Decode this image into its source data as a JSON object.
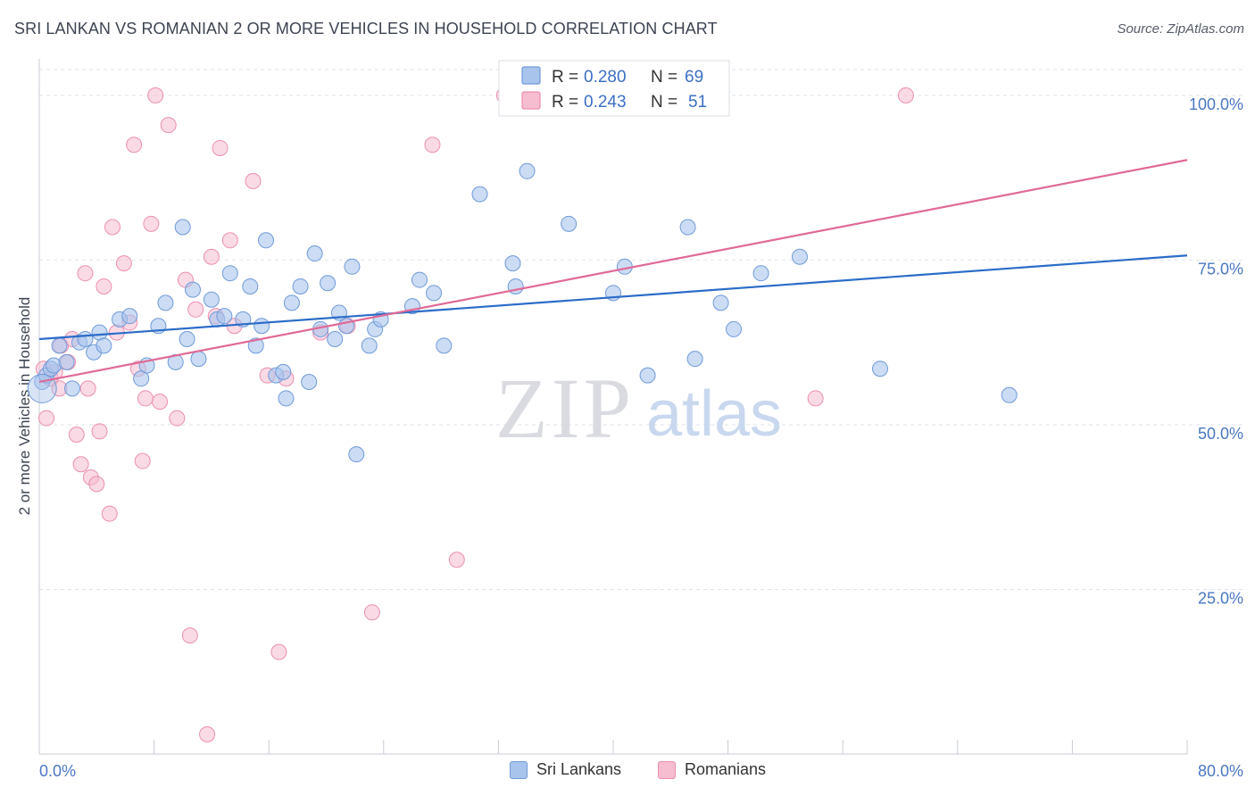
{
  "title": "SRI LANKAN VS ROMANIAN 2 OR MORE VEHICLES IN HOUSEHOLD CORRELATION CHART",
  "source": "Source: ZipAtlas.com",
  "watermark": {
    "zip": "ZIP",
    "atlas": "atlas"
  },
  "colors": {
    "blue_fill": "#a9c4ec",
    "blue_stroke": "#6f9ad8",
    "blue_line": "#2b6cc8",
    "pink_fill": "#f6bcd0",
    "pink_stroke": "#ec8fb0",
    "pink_line": "#e06a97",
    "tick_label": "#4a78c2",
    "grid": "#dde2ea"
  },
  "legend_box": {
    "rows": [
      {
        "r_label": "R = ",
        "r_value": "0.280",
        "n_label": "N = ",
        "n_value": "69"
      },
      {
        "r_label": "R = ",
        "r_value": "0.243",
        "n_label": "N = ",
        "n_value": "51"
      }
    ]
  },
  "bottom_legend": {
    "blue": "Sri Lankans",
    "pink": "Romanians"
  },
  "chart_data": {
    "type": "scatter",
    "title": "SRI LANKAN VS ROMANIAN 2 OR MORE VEHICLES IN HOUSEHOLD CORRELATION CHART",
    "xlabel": "",
    "ylabel": "2 or more Vehicles in Household",
    "xlim": [
      0,
      80
    ],
    "ylim": [
      0,
      105
    ],
    "x_tick_labels": [
      "0.0%",
      "80.0%"
    ],
    "y_ticks": [
      25,
      50,
      75,
      100
    ],
    "y_tick_labels": [
      "25.0%",
      "50.0%",
      "75.0%",
      "100.0%"
    ],
    "grid": true,
    "legend_position": "top-center",
    "series": [
      {
        "name": "Sri Lankans",
        "color": "#a9c4ec",
        "r": 0.28,
        "n": 69,
        "trend": [
          [
            0,
            63.0
          ],
          [
            80,
            75.7
          ]
        ],
        "points": [
          [
            0.2,
            56.5
          ],
          [
            0.5,
            57.5
          ],
          [
            0.8,
            58.5
          ],
          [
            1.0,
            59.0
          ],
          [
            1.4,
            62.0
          ],
          [
            1.9,
            59.5
          ],
          [
            2.3,
            55.5
          ],
          [
            2.8,
            62.5
          ],
          [
            3.2,
            63.0
          ],
          [
            3.8,
            61.0
          ],
          [
            4.2,
            64.0
          ],
          [
            4.5,
            62.0
          ],
          [
            5.6,
            66.0
          ],
          [
            6.3,
            66.5
          ],
          [
            7.1,
            57.0
          ],
          [
            7.5,
            59.0
          ],
          [
            8.3,
            65.0
          ],
          [
            8.8,
            68.5
          ],
          [
            9.5,
            59.5
          ],
          [
            10.3,
            63.0
          ],
          [
            10.7,
            70.5
          ],
          [
            11.1,
            60.0
          ],
          [
            12.0,
            69.0
          ],
          [
            12.4,
            66.0
          ],
          [
            12.9,
            66.5
          ],
          [
            13.3,
            73.0
          ],
          [
            14.2,
            66.0
          ],
          [
            14.7,
            71.0
          ],
          [
            15.1,
            62.0
          ],
          [
            15.5,
            65.0
          ],
          [
            15.8,
            78.0
          ],
          [
            16.5,
            57.5
          ],
          [
            17.0,
            58.0
          ],
          [
            17.2,
            54.0
          ],
          [
            17.6,
            68.5
          ],
          [
            18.2,
            71.0
          ],
          [
            18.8,
            56.5
          ],
          [
            19.2,
            76.0
          ],
          [
            19.6,
            64.5
          ],
          [
            20.1,
            71.5
          ],
          [
            20.6,
            63.0
          ],
          [
            20.9,
            67.0
          ],
          [
            21.4,
            65.0
          ],
          [
            21.8,
            74.0
          ],
          [
            22.1,
            45.5
          ],
          [
            23.0,
            62.0
          ],
          [
            23.4,
            64.5
          ],
          [
            23.8,
            66.0
          ],
          [
            26.0,
            68.0
          ],
          [
            26.5,
            72.0
          ],
          [
            27.5,
            70.0
          ],
          [
            28.2,
            62.0
          ],
          [
            30.7,
            85.0
          ],
          [
            33.0,
            74.5
          ],
          [
            33.2,
            71.0
          ],
          [
            34.0,
            88.5
          ],
          [
            36.9,
            80.5
          ],
          [
            40.0,
            70.0
          ],
          [
            40.8,
            74.0
          ],
          [
            42.4,
            57.5
          ],
          [
            45.2,
            80.0
          ],
          [
            45.7,
            60.0
          ],
          [
            47.5,
            68.5
          ],
          [
            48.4,
            64.5
          ],
          [
            50.3,
            73.0
          ],
          [
            53.0,
            75.5
          ],
          [
            58.6,
            58.5
          ],
          [
            67.6,
            54.5
          ],
          [
            10.0,
            80.0
          ]
        ]
      },
      {
        "name": "Romanians",
        "color": "#f6bcd0",
        "r": 0.243,
        "n": 51,
        "trend": [
          [
            0,
            56.5
          ],
          [
            80,
            90.2
          ]
        ],
        "points": [
          [
            0.3,
            58.5
          ],
          [
            0.5,
            51.0
          ],
          [
            0.8,
            57.0
          ],
          [
            1.1,
            58.0
          ],
          [
            1.4,
            55.5
          ],
          [
            1.5,
            62.0
          ],
          [
            2.0,
            59.5
          ],
          [
            2.3,
            63.0
          ],
          [
            2.6,
            48.5
          ],
          [
            2.9,
            44.0
          ],
          [
            3.2,
            73.0
          ],
          [
            3.4,
            55.5
          ],
          [
            3.6,
            42.0
          ],
          [
            4.0,
            41.0
          ],
          [
            4.2,
            49.0
          ],
          [
            4.5,
            71.0
          ],
          [
            4.9,
            36.5
          ],
          [
            5.1,
            80.0
          ],
          [
            5.4,
            64.0
          ],
          [
            5.9,
            74.5
          ],
          [
            6.3,
            65.5
          ],
          [
            6.6,
            92.5
          ],
          [
            6.9,
            58.5
          ],
          [
            7.2,
            44.5
          ],
          [
            7.4,
            54.0
          ],
          [
            7.8,
            80.5
          ],
          [
            8.1,
            100.0
          ],
          [
            8.4,
            53.5
          ],
          [
            9.0,
            95.5
          ],
          [
            9.6,
            51.0
          ],
          [
            10.2,
            72.0
          ],
          [
            10.5,
            18.0
          ],
          [
            10.9,
            67.5
          ],
          [
            11.7,
            3.0
          ],
          [
            12.0,
            75.5
          ],
          [
            12.3,
            66.5
          ],
          [
            12.6,
            92.0
          ],
          [
            13.3,
            78.0
          ],
          [
            13.6,
            65.0
          ],
          [
            14.9,
            87.0
          ],
          [
            15.9,
            57.5
          ],
          [
            16.7,
            15.5
          ],
          [
            17.2,
            57.0
          ],
          [
            19.6,
            64.0
          ],
          [
            21.5,
            65.0
          ],
          [
            23.2,
            21.5
          ],
          [
            27.4,
            92.5
          ],
          [
            29.1,
            29.5
          ],
          [
            32.4,
            100.0
          ],
          [
            54.1,
            54.0
          ],
          [
            60.4,
            100.0
          ]
        ]
      }
    ]
  }
}
